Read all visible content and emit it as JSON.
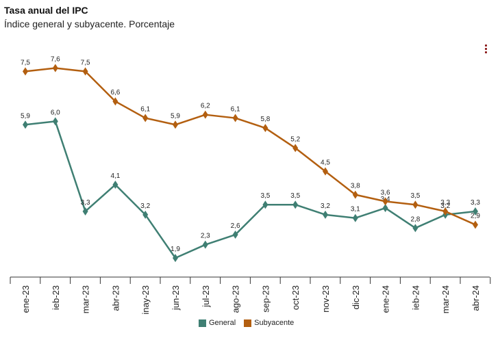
{
  "header": {
    "title": "Tasa anual del IPC",
    "subtitle": "Índice general y subyacente. Porcentaje"
  },
  "chart_data": {
    "type": "line",
    "title": "Tasa anual del IPC",
    "subtitle": "Índice general y subyacente. Porcentaje",
    "xlabel": "",
    "ylabel": "",
    "categories": [
      "ene-23",
      "feb-23",
      "mar-23",
      "abr-23",
      "may-23",
      "jun-23",
      "jul-23",
      "ago-23",
      "sep-23",
      "oct-23",
      "nov-23",
      "dic-23",
      "ene-24",
      "feb-24",
      "mar-24",
      "abr-24"
    ],
    "tick_labels": [
      "ene-23",
      "ieb-23",
      "mar-23",
      "abr-23",
      "inay-23",
      "jun-23",
      "jul-23",
      "ago-23",
      "sep-23",
      "oct-23",
      "nov-23",
      "dic-23",
      "ene-24",
      "ieb-24",
      "mar-24",
      "abr-24"
    ],
    "ylim": [
      1.0,
      8.0
    ],
    "grid": false,
    "legend_position": "bottom",
    "series": [
      {
        "name": "General",
        "color": "#3f7f73",
        "values": [
          5.9,
          6.0,
          3.3,
          4.1,
          3.2,
          1.9,
          2.3,
          2.6,
          3.5,
          3.5,
          3.2,
          3.1,
          3.4,
          2.8,
          3.2,
          3.3
        ],
        "labels": [
          "5,9",
          "6,0",
          "3,3",
          "4,1",
          "3,2",
          "1,9",
          "2,3",
          "2,6",
          "3,5",
          "3,5",
          "3,2",
          "3,1",
          "3,4",
          "2,8",
          "3,2",
          "3,3"
        ]
      },
      {
        "name": "Subyacente",
        "color": "#b35f10",
        "values": [
          7.5,
          7.6,
          7.5,
          6.6,
          6.1,
          5.9,
          6.2,
          6.1,
          5.8,
          5.2,
          4.5,
          3.8,
          3.6,
          3.5,
          3.3,
          2.9
        ],
        "labels": [
          "7,5",
          "7,6",
          "7,5",
          "6,6",
          "6,1",
          "5,9",
          "6,2",
          "6,1",
          "5,8",
          "5,2",
          "4,5",
          "3,8",
          "3,6",
          "3,5",
          "3,3",
          "2,9"
        ]
      }
    ]
  }
}
